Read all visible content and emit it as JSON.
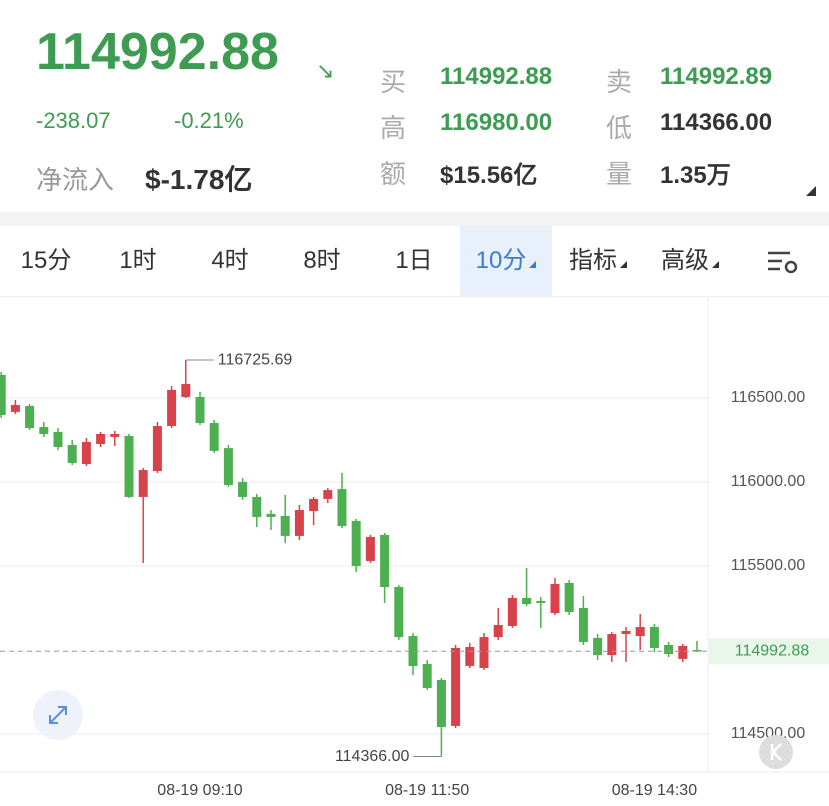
{
  "header": {
    "price": "114992.88",
    "change": "-238.07",
    "change_pct": "-0.21%",
    "inflow_label": "净流入",
    "inflow_value": "$-1.78亿",
    "quotes": [
      {
        "label": "买",
        "value": "114992.88",
        "color": "#3d9c52"
      },
      {
        "label": "卖",
        "value": "114992.89",
        "color": "#3d9c52"
      },
      {
        "label": "高",
        "value": "116980.00",
        "color": "#3d9c52"
      },
      {
        "label": "低",
        "value": "114366.00",
        "color": "#333333"
      },
      {
        "label": "额",
        "value": "$15.56亿",
        "color": "#333333"
      },
      {
        "label": "量",
        "value": "1.35万",
        "color": "#333333"
      }
    ]
  },
  "tabs": [
    {
      "label": "15分"
    },
    {
      "label": "1时"
    },
    {
      "label": "4时"
    },
    {
      "label": "8时"
    },
    {
      "label": "1日"
    },
    {
      "label": "10分",
      "active": true,
      "dropdown": true
    },
    {
      "label": "指标",
      "dropdown": true
    },
    {
      "label": "高级",
      "dropdown": true
    }
  ],
  "chart_data": {
    "type": "candlestick",
    "up_color": "#d8434b",
    "down_color": "#4caf50",
    "categories": [
      null,
      null,
      null,
      null,
      null,
      null,
      null,
      null,
      null,
      null,
      null,
      null,
      null,
      null,
      "08-19 09:10",
      null,
      null,
      null,
      null,
      null,
      null,
      null,
      null,
      null,
      null,
      null,
      null,
      null,
      null,
      null,
      "08-19 11:50",
      null,
      null,
      null,
      null,
      null,
      null,
      null,
      null,
      null,
      null,
      null,
      null,
      null,
      null,
      null,
      "08-19 14:30",
      null,
      null,
      null
    ],
    "open": [
      116637,
      116417,
      116452,
      116327,
      116298,
      116220,
      116107,
      116226,
      116268,
      116274,
      115911,
      116065,
      116333,
      116506,
      116506,
      116351,
      116202,
      116000,
      115911,
      115810,
      115798,
      115679,
      115827,
      115899,
      115958,
      115768,
      115530,
      115685,
      115375,
      115083,
      114917,
      114822,
      114548,
      114905,
      114893,
      115077,
      115143,
      115310,
      115292,
      115220,
      115399,
      115250,
      115072,
      114970,
      115095,
      115083,
      115137,
      115030,
      114947,
      115000
    ],
    "high": [
      116655,
      116488,
      116464,
      116357,
      116321,
      116250,
      116262,
      116298,
      116304,
      116286,
      116083,
      116357,
      116571,
      116725.69,
      116536,
      116369,
      116220,
      116024,
      115929,
      115833,
      115923,
      115863,
      115911,
      115964,
      116054,
      115780,
      115685,
      115696,
      115387,
      115101,
      114941,
      114833,
      115030,
      115042,
      115101,
      115250,
      115327,
      115488,
      115316,
      115429,
      115417,
      115321,
      115095,
      115107,
      115137,
      115214,
      115155,
      115048,
      115036,
      115054
    ],
    "low": [
      116381,
      116405,
      116310,
      116268,
      116190,
      116101,
      116095,
      116208,
      116214,
      115905,
      115518,
      116054,
      116321,
      116500,
      116339,
      116173,
      115970,
      115893,
      115732,
      115714,
      115637,
      115655,
      115744,
      115875,
      115726,
      115464,
      115518,
      115280,
      115060,
      114851,
      114762,
      114366,
      114536,
      114893,
      114881,
      115060,
      115131,
      115262,
      115131,
      115208,
      115208,
      115030,
      114941,
      114929,
      114929,
      115000,
      114988,
      114958,
      114929,
      114988
    ],
    "close": [
      116399,
      116458,
      116321,
      116286,
      116208,
      116113,
      116238,
      116286,
      116286,
      115911,
      116071,
      116333,
      116548,
      116583,
      116351,
      116185,
      115982,
      115911,
      115792,
      115792,
      115679,
      115833,
      115899,
      115952,
      115738,
      115500,
      115673,
      115375,
      115077,
      114905,
      114774,
      114542,
      115012,
      115018,
      115077,
      115149,
      115310,
      115274,
      115280,
      115393,
      115226,
      115048,
      114970,
      115095,
      115113,
      115137,
      115012,
      114976,
      115024,
      114992.88
    ],
    "high_label": "116725.69",
    "low_label": "114366.00",
    "last_label": "114992.88",
    "ylim": [
      114274,
      117095
    ],
    "yticks": [
      {
        "value": 114500,
        "label": "114500.00"
      },
      {
        "value": 115500,
        "label": "115500.00"
      },
      {
        "value": 116000,
        "label": "116000.00"
      },
      {
        "value": 116500,
        "label": "116500.00"
      }
    ],
    "grid": true
  }
}
